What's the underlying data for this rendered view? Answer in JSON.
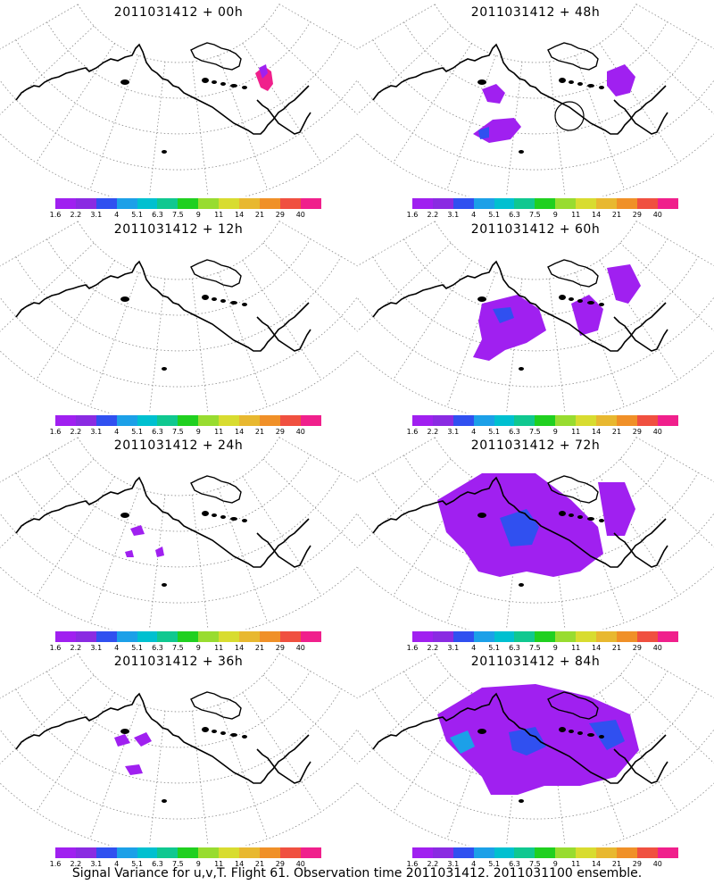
{
  "caption": "Signal Variance for u,v,T. Flight 61. Observation time 2011031412. 2011031100 ensemble.",
  "colorbar": {
    "colors": [
      "#a020f0",
      "#8a2be2",
      "#3050f0",
      "#1ca0e8",
      "#00c0d0",
      "#10c890",
      "#20d020",
      "#98dc30",
      "#d8dc30",
      "#e8b830",
      "#f09028",
      "#f05040",
      "#f0208c"
    ],
    "labels": [
      "1.6",
      "2.2",
      "3.1",
      "4",
      "5.1",
      "6.3",
      "7.5",
      "9",
      "11",
      "14",
      "21",
      "29",
      "40"
    ]
  },
  "panels": [
    {
      "title": "2011031412 + 00h"
    },
    {
      "title": "2011031412 + 48h"
    },
    {
      "title": "2011031412 + 12h"
    },
    {
      "title": "2011031412 + 60h"
    },
    {
      "title": "2011031412 + 24h"
    },
    {
      "title": "2011031412 + 72h"
    },
    {
      "title": "2011031412 + 36h"
    },
    {
      "title": "2011031412 + 84h"
    }
  ]
}
